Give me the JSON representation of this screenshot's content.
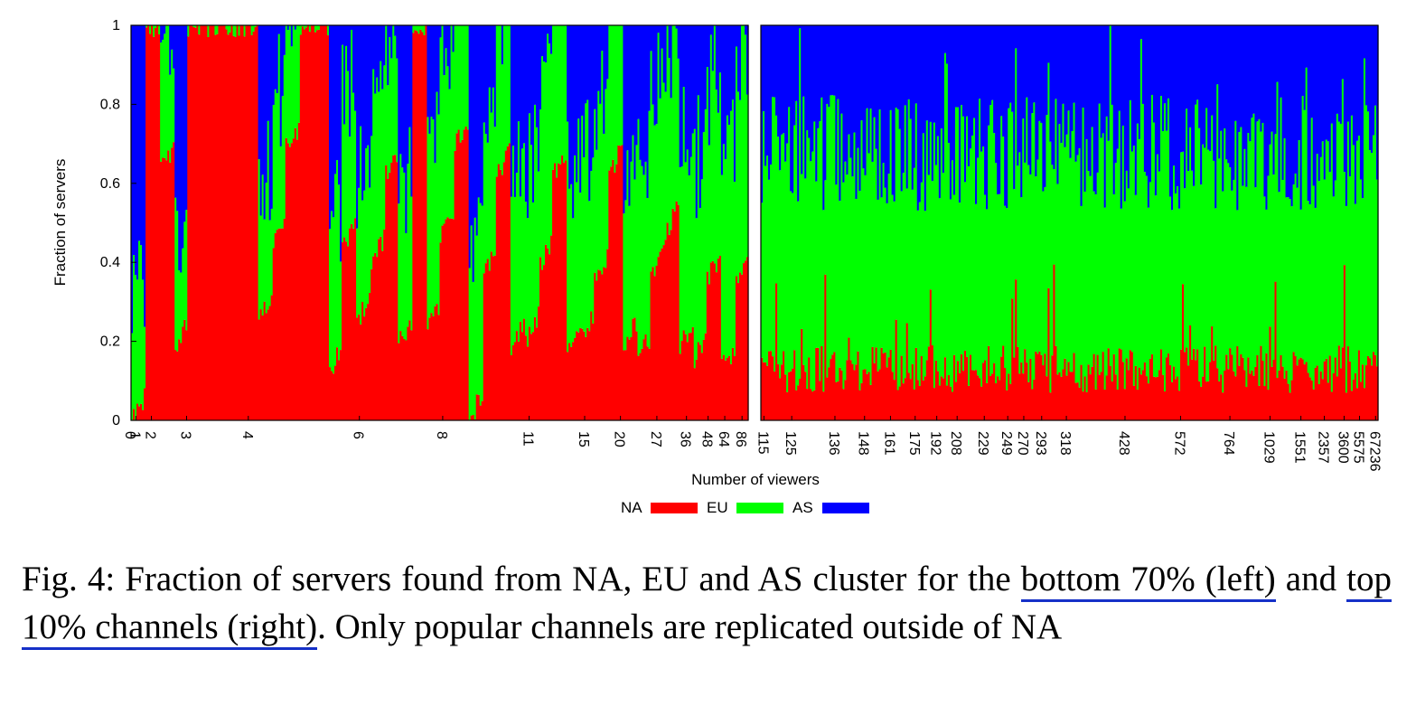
{
  "chart_data": {
    "type": "stacked-bar",
    "ylabel": "Fraction of servers",
    "xlabel": "Number of viewers",
    "ylim": [
      0,
      1
    ],
    "yticks": [
      "0",
      "0.2",
      "0.4",
      "0.6",
      "0.8",
      "1"
    ],
    "grid": false,
    "legend": {
      "placement": "bottom-center",
      "entries": [
        {
          "label": "NA",
          "color": "#ff0000"
        },
        {
          "label": "EU",
          "color": "#00ff00"
        },
        {
          "label": "AS",
          "color": "#0000ff"
        }
      ]
    },
    "panels": [
      {
        "name": "bottom 70% (left)",
        "xticks": [
          "0",
          "1",
          "2",
          "3",
          "4",
          "6",
          "8",
          "11",
          "15",
          "20",
          "27",
          "36",
          "48",
          "64",
          "86"
        ],
        "na_band": [
          [
            0.0,
            1.0,
            0.5,
            0.0
          ],
          [
            1.0,
            1.0,
            1.0,
            1.0
          ],
          [
            1.0,
            0.2,
            0.33,
            0.5
          ],
          [
            1.0,
            1.0,
            0.0,
            0.25
          ],
          [
            0.25,
            0.33,
            0.5,
            0.0
          ],
          [
            1.0,
            0.17,
            0.33,
            0.5
          ],
          [
            0.0,
            0.3,
            0.5,
            0.0
          ],
          [
            0.2,
            0.33,
            0.5,
            0.0
          ],
          [
            0.2,
            0.3,
            0.5,
            0.0
          ],
          [
            0.15,
            0.3,
            0.35,
            0.0
          ],
          [
            0.15,
            0.3,
            0.0,
            0.15
          ]
        ],
        "mean_fractions": {
          "NA": 0.33,
          "EU": 0.27,
          "AS": 0.4
        }
      },
      {
        "name": "top 10% channels (right)",
        "xticks": [
          "115",
          "125",
          "136",
          "148",
          "161",
          "175",
          "192",
          "208",
          "229",
          "249",
          "270",
          "293",
          "318",
          "428",
          "572",
          "764",
          "1029",
          "1551",
          "2357",
          "3600",
          "5575",
          "67236"
        ],
        "mean_fractions": {
          "NA": 0.13,
          "EU": 0.55,
          "AS": 0.32
        }
      }
    ]
  },
  "caption": {
    "prefix": "Fig. 4: Fraction of servers found from NA, EU and AS cluster for the ",
    "link1": "bottom 70% (left)",
    "middle": " and ",
    "link2": "top 10% channels (right)",
    "suffix": ". Only popular channels are replicated outside of NA"
  }
}
